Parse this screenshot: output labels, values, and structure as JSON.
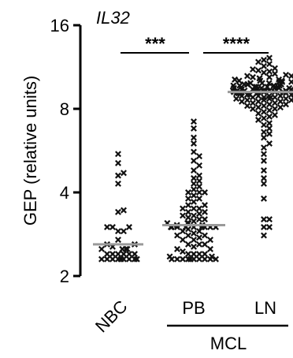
{
  "chart_data": {
    "type": "scatter",
    "title": "IL32",
    "ylabel": "GEP (relative units)",
    "y_scale": "log2",
    "ylim": [
      2,
      16
    ],
    "y_ticks": [
      {
        "value": 2,
        "label": "2"
      },
      {
        "value": 4,
        "label": "4"
      },
      {
        "value": 8,
        "label": "8"
      },
      {
        "value": 16,
        "label": "16"
      }
    ],
    "categories": [
      "NBC",
      "PB",
      "LN"
    ],
    "group_label": {
      "text": "MCL",
      "spans": [
        "PB",
        "LN"
      ]
    },
    "medians": {
      "NBC": 2.6,
      "PB": 3.05,
      "LN": 9.2
    },
    "series": [
      {
        "category": "NBC",
        "values": [
          2.3,
          2.3,
          2.3,
          2.3,
          2.3,
          2.3,
          2.3,
          2.3,
          2.3,
          2.4,
          2.4,
          2.4,
          2.4,
          2.4,
          2.4,
          2.5,
          2.5,
          2.5,
          2.5,
          2.55,
          2.6,
          2.6,
          2.7,
          2.9,
          2.9,
          3.0,
          3.0,
          3.0,
          3.4,
          3.45,
          4.3,
          4.6,
          4.7,
          5.1,
          5.5
        ]
      },
      {
        "category": "PB",
        "values": [
          2.3,
          2.3,
          2.3,
          2.3,
          2.3,
          2.3,
          2.3,
          2.3,
          2.3,
          2.3,
          2.35,
          2.35,
          2.4,
          2.4,
          2.4,
          2.4,
          2.45,
          2.5,
          2.5,
          2.55,
          2.6,
          2.6,
          2.6,
          2.7,
          2.7,
          2.7,
          2.75,
          2.8,
          2.8,
          2.8,
          2.85,
          2.9,
          2.9,
          2.95,
          3.0,
          3.0,
          3.0,
          3.0,
          3.0,
          3.0,
          3.0,
          3.0,
          3.0,
          3.05,
          3.05,
          3.1,
          3.1,
          3.1,
          3.15,
          3.2,
          3.2,
          3.25,
          3.3,
          3.3,
          3.35,
          3.4,
          3.4,
          3.5,
          3.5,
          3.5,
          3.6,
          3.6,
          3.7,
          3.8,
          3.8,
          3.9,
          4.0,
          4.0,
          4.0,
          4.1,
          4.2,
          4.3,
          4.4,
          4.5,
          4.6,
          4.8,
          5.0,
          5.2,
          5.4,
          5.6,
          6.0,
          6.3,
          6.8,
          7.2
        ]
      },
      {
        "category": "LN",
        "values": [
          2.8,
          3.0,
          3.0,
          3.2,
          3.2,
          3.8,
          4.3,
          4.5,
          4.8,
          5.2,
          5.5,
          5.8,
          6.0,
          6.3,
          6.5,
          6.6,
          6.8,
          7.0,
          7.1,
          7.3,
          7.4,
          7.5,
          7.6,
          7.7,
          7.8,
          7.9,
          8.0,
          8.0,
          8.1,
          8.1,
          8.2,
          8.2,
          8.3,
          8.3,
          8.4,
          8.4,
          8.5,
          8.5,
          8.5,
          8.6,
          8.6,
          8.6,
          8.7,
          8.7,
          8.7,
          8.8,
          8.8,
          8.8,
          8.8,
          8.9,
          8.9,
          8.9,
          8.9,
          9.0,
          9.0,
          9.0,
          9.0,
          9.0,
          9.1,
          9.1,
          9.1,
          9.1,
          9.1,
          9.2,
          9.2,
          9.2,
          9.2,
          9.2,
          9.2,
          9.3,
          9.3,
          9.3,
          9.3,
          9.3,
          9.3,
          9.4,
          9.4,
          9.4,
          9.4,
          9.4,
          9.5,
          9.5,
          9.5,
          9.5,
          9.5,
          9.6,
          9.6,
          9.6,
          9.6,
          9.7,
          9.7,
          9.7,
          9.7,
          9.8,
          9.8,
          9.8,
          9.8,
          9.9,
          9.9,
          9.9,
          10.0,
          10.0,
          10.0,
          10.1,
          10.1,
          10.1,
          10.2,
          10.2,
          10.3,
          10.3,
          10.4,
          10.4,
          10.5,
          10.5,
          10.6,
          10.7,
          10.8,
          10.9,
          11.0,
          11.1,
          11.2,
          11.4,
          11.6,
          11.8,
          12.0,
          12.2
        ]
      }
    ],
    "comparisons": [
      {
        "from": "NBC",
        "to": "PB",
        "label": "***"
      },
      {
        "from": "PB",
        "to": "LN",
        "label": "****"
      }
    ]
  }
}
